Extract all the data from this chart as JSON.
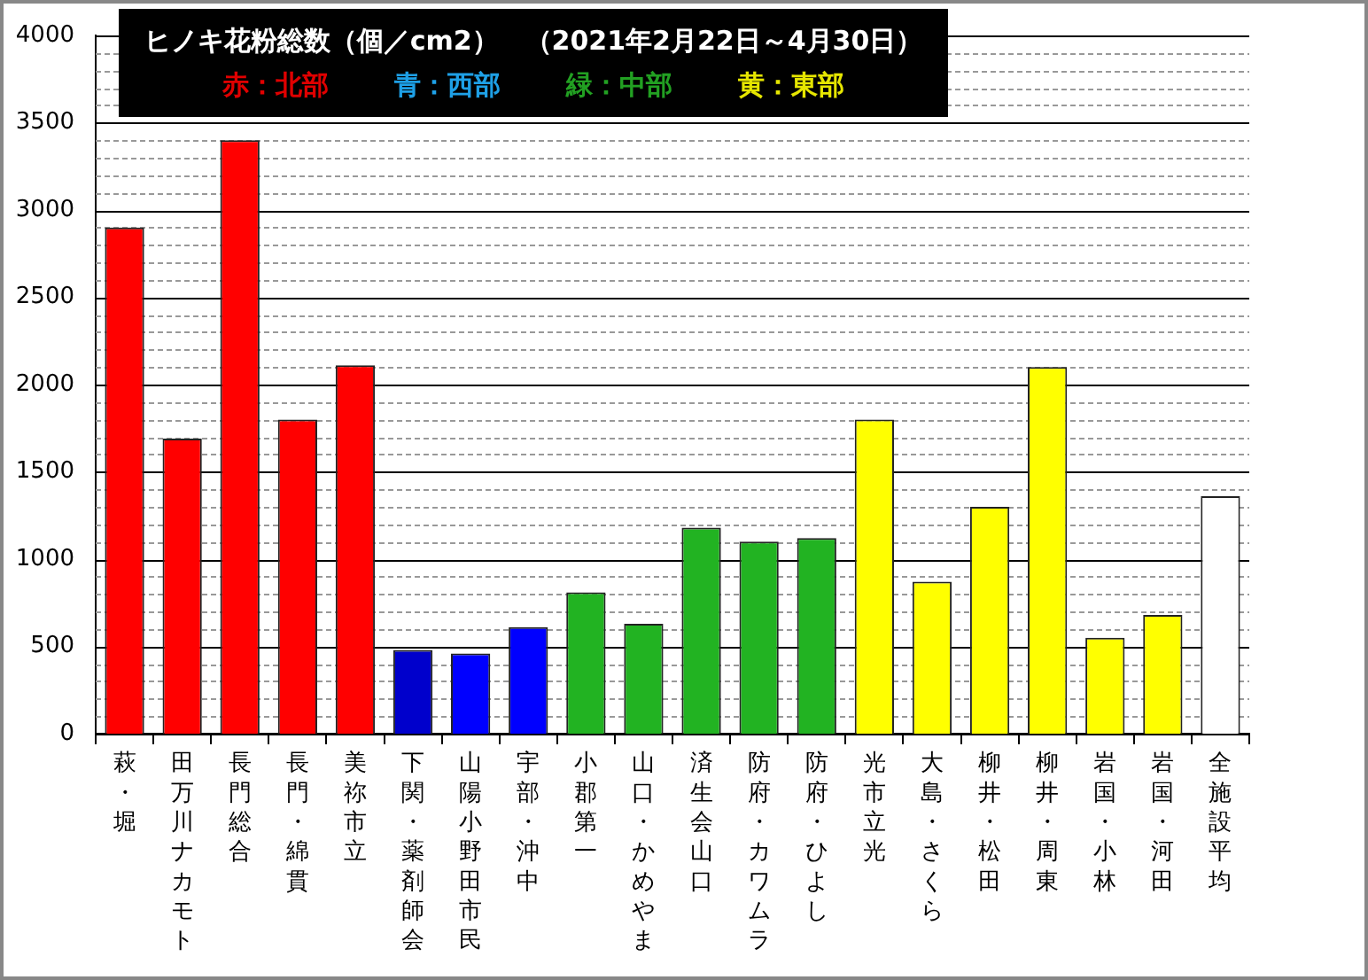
{
  "chart_data": {
    "type": "bar",
    "title": "ヒノキ花粉総数（個／cm2）　（2021年2月22日～4月30日）",
    "annotations": [
      "赤：北部",
      "青：西部",
      "緑：中部",
      "黄：東部"
    ],
    "categories": [
      "萩・堀",
      "田万川ナカモト",
      "長門総合",
      "長門・綿貫",
      "美祢市立",
      "下関・薬剤師会",
      "山陽小野田市民",
      "宇部・沖中",
      "小郡第一",
      "山口・かめやま",
      "済生会山口",
      "防府・カワムラ",
      "防府・ひよし",
      "光市立光",
      "大島・さくら",
      "柳井・松田",
      "柳井・周東",
      "岩国・小林",
      "岩国・河田",
      "全施設平均"
    ],
    "values": [
      2900,
      1690,
      3400,
      1800,
      2110,
      480,
      460,
      610,
      810,
      630,
      1180,
      1100,
      1120,
      1800,
      870,
      1300,
      2100,
      550,
      680,
      1360
    ],
    "colors": [
      "#ff0000",
      "#ff0000",
      "#ff0000",
      "#ff0000",
      "#ff0000",
      "#0000cc",
      "#0000ff",
      "#0000ff",
      "#22b322",
      "#22b322",
      "#22b322",
      "#22b322",
      "#22b322",
      "#ffff00",
      "#ffff00",
      "#ffff00",
      "#ffff00",
      "#ffff00",
      "#ffff00",
      "#ffffff"
    ],
    "ylim": [
      0,
      4000
    ],
    "yticks": [
      0,
      {
        "value": 100,
        "label": null
      },
      {
        "value": 200,
        "label": null
      },
      {
        "value": 300,
        "label": null
      },
      {
        "value": 400,
        "label": null
      },
      500,
      {
        "value": 600,
        "label": null
      },
      {
        "value": 700,
        "label": null
      },
      {
        "value": 800,
        "label": null
      },
      {
        "value": 900,
        "label": null
      },
      1000,
      {
        "value": 1100,
        "label": null
      },
      {
        "value": 1200,
        "label": null
      },
      {
        "value": 1300,
        "label": null
      },
      {
        "value": 1400,
        "label": null
      },
      1500,
      {
        "value": 1600,
        "label": null
      },
      {
        "value": 1700,
        "label": null
      },
      {
        "value": 1800,
        "label": null
      },
      {
        "value": 1900,
        "label": null
      },
      2000,
      {
        "value": 2100,
        "label": null
      },
      {
        "value": 2200,
        "label": null
      },
      {
        "value": 2300,
        "label": null
      },
      {
        "value": 2400,
        "label": null
      },
      2500,
      {
        "value": 2600,
        "label": null
      },
      {
        "value": 2700,
        "label": null
      },
      {
        "value": 2800,
        "label": null
      },
      {
        "value": 2900,
        "label": null
      },
      3000,
      {
        "value": 3100,
        "label": null
      },
      {
        "value": 3200,
        "label": null
      },
      {
        "value": 3300,
        "label": null
      },
      {
        "value": 3400,
        "label": null
      },
      3500,
      {
        "value": 3600,
        "label": null
      },
      {
        "value": 3700,
        "label": null
      },
      {
        "value": 3800,
        "label": null
      },
      {
        "value": 3900,
        "label": null
      },
      4000
    ],
    "grid": true,
    "legend": false
  }
}
